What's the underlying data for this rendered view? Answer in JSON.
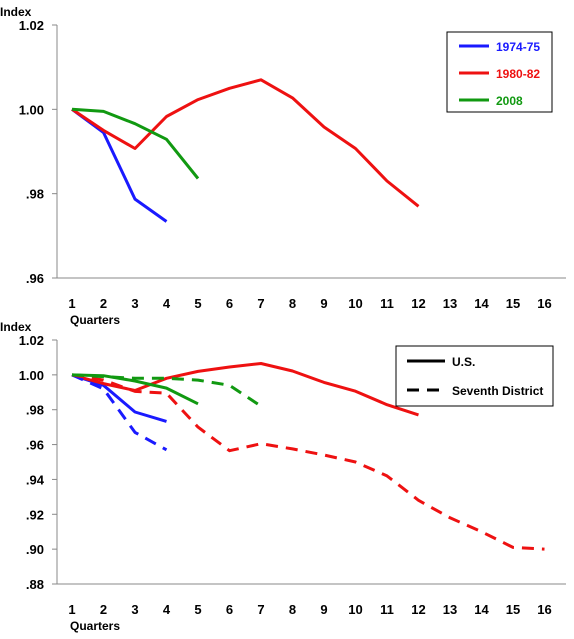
{
  "colors": {
    "1974-75": "#1a1aff",
    "1980-82": "#ee1111",
    "2008": "#119911"
  },
  "chart_data": [
    {
      "type": "line",
      "ylabel": "Index",
      "xlabel": "Quarters",
      "ylim": [
        0.96,
        1.02
      ],
      "yticks": [
        0.96,
        0.98,
        1.0,
        1.02
      ],
      "ytick_labels": [
        ".96",
        ".98",
        "1.00",
        "1.02"
      ],
      "xlim": [
        1,
        16
      ],
      "xticks": [
        1,
        2,
        3,
        4,
        5,
        6,
        7,
        8,
        9,
        10,
        11,
        12,
        13,
        14,
        15,
        16
      ],
      "grid": false,
      "legend_position": "top-right",
      "series": [
        {
          "name": "1974-75",
          "key": "1974-75",
          "dash": "solid",
          "x": [
            1,
            2,
            3,
            4
          ],
          "values": [
            1.0,
            0.9945,
            0.9787,
            0.9734
          ]
        },
        {
          "name": "1980-82",
          "key": "1980-82",
          "dash": "solid",
          "x": [
            1,
            2,
            3,
            4,
            5,
            6,
            7,
            8,
            9,
            10,
            11,
            12
          ],
          "values": [
            1.0,
            0.995,
            0.9907,
            0.9983,
            1.0023,
            1.005,
            1.007,
            1.0027,
            0.9958,
            0.9907,
            0.983,
            0.977
          ]
        },
        {
          "name": "2008",
          "key": "2008",
          "dash": "solid",
          "x": [
            1,
            2,
            3,
            4,
            5
          ],
          "values": [
            1.0,
            0.9995,
            0.9966,
            0.9929,
            0.9836
          ]
        }
      ]
    },
    {
      "type": "line",
      "ylabel": "Index",
      "xlabel": "Quarters",
      "ylim": [
        0.88,
        1.02
      ],
      "yticks": [
        0.88,
        0.9,
        0.92,
        0.94,
        0.96,
        0.98,
        1.0,
        1.02
      ],
      "ytick_labels": [
        ".88",
        ".90",
        ".92",
        ".94",
        ".96",
        ".98",
        "1.00",
        "1.02"
      ],
      "xlim": [
        1,
        16
      ],
      "xticks": [
        1,
        2,
        3,
        4,
        5,
        6,
        7,
        8,
        9,
        10,
        11,
        12,
        13,
        14,
        15,
        16
      ],
      "grid": false,
      "legend_position": "top-right",
      "legend": [
        {
          "label": "U.S.",
          "dash": "solid"
        },
        {
          "label": "Seventh District",
          "dash": "dashed"
        }
      ],
      "series": [
        {
          "key": "1974-75",
          "dash": "solid",
          "x": [
            1,
            2,
            3,
            4
          ],
          "values": [
            1.0,
            0.994,
            0.9787,
            0.9733
          ]
        },
        {
          "key": "1980-82",
          "dash": "solid",
          "x": [
            1,
            2,
            3,
            4,
            5,
            6,
            7,
            8,
            9,
            10,
            11,
            12
          ],
          "values": [
            1.0,
            0.995,
            0.991,
            0.998,
            1.002,
            1.0045,
            1.0065,
            1.0022,
            0.9957,
            0.9906,
            0.9829,
            0.977
          ]
        },
        {
          "key": "2008",
          "dash": "solid",
          "x": [
            1,
            2,
            3,
            4,
            5
          ],
          "values": [
            1.0,
            0.9995,
            0.9965,
            0.9924,
            0.9834
          ]
        },
        {
          "key": "1974-75",
          "dash": "dashed",
          "x": [
            1,
            2,
            3,
            4
          ],
          "values": [
            1.0,
            0.992,
            0.967,
            0.957
          ]
        },
        {
          "key": "1980-82",
          "dash": "dashed",
          "x": [
            1,
            2,
            3,
            4,
            5,
            6,
            7,
            8,
            9,
            10,
            11,
            12,
            13,
            14,
            15,
            16
          ],
          "values": [
            1.0,
            0.997,
            0.9905,
            0.9895,
            0.97,
            0.9565,
            0.9605,
            0.9575,
            0.954,
            0.95,
            0.942,
            0.928,
            0.918,
            0.91,
            0.901,
            0.9
          ]
        },
        {
          "key": "2008",
          "dash": "dashed",
          "x": [
            1,
            2,
            3,
            4,
            5,
            6,
            7
          ],
          "values": [
            1.0,
            0.999,
            0.998,
            0.998,
            0.997,
            0.994,
            0.982
          ]
        }
      ]
    }
  ]
}
